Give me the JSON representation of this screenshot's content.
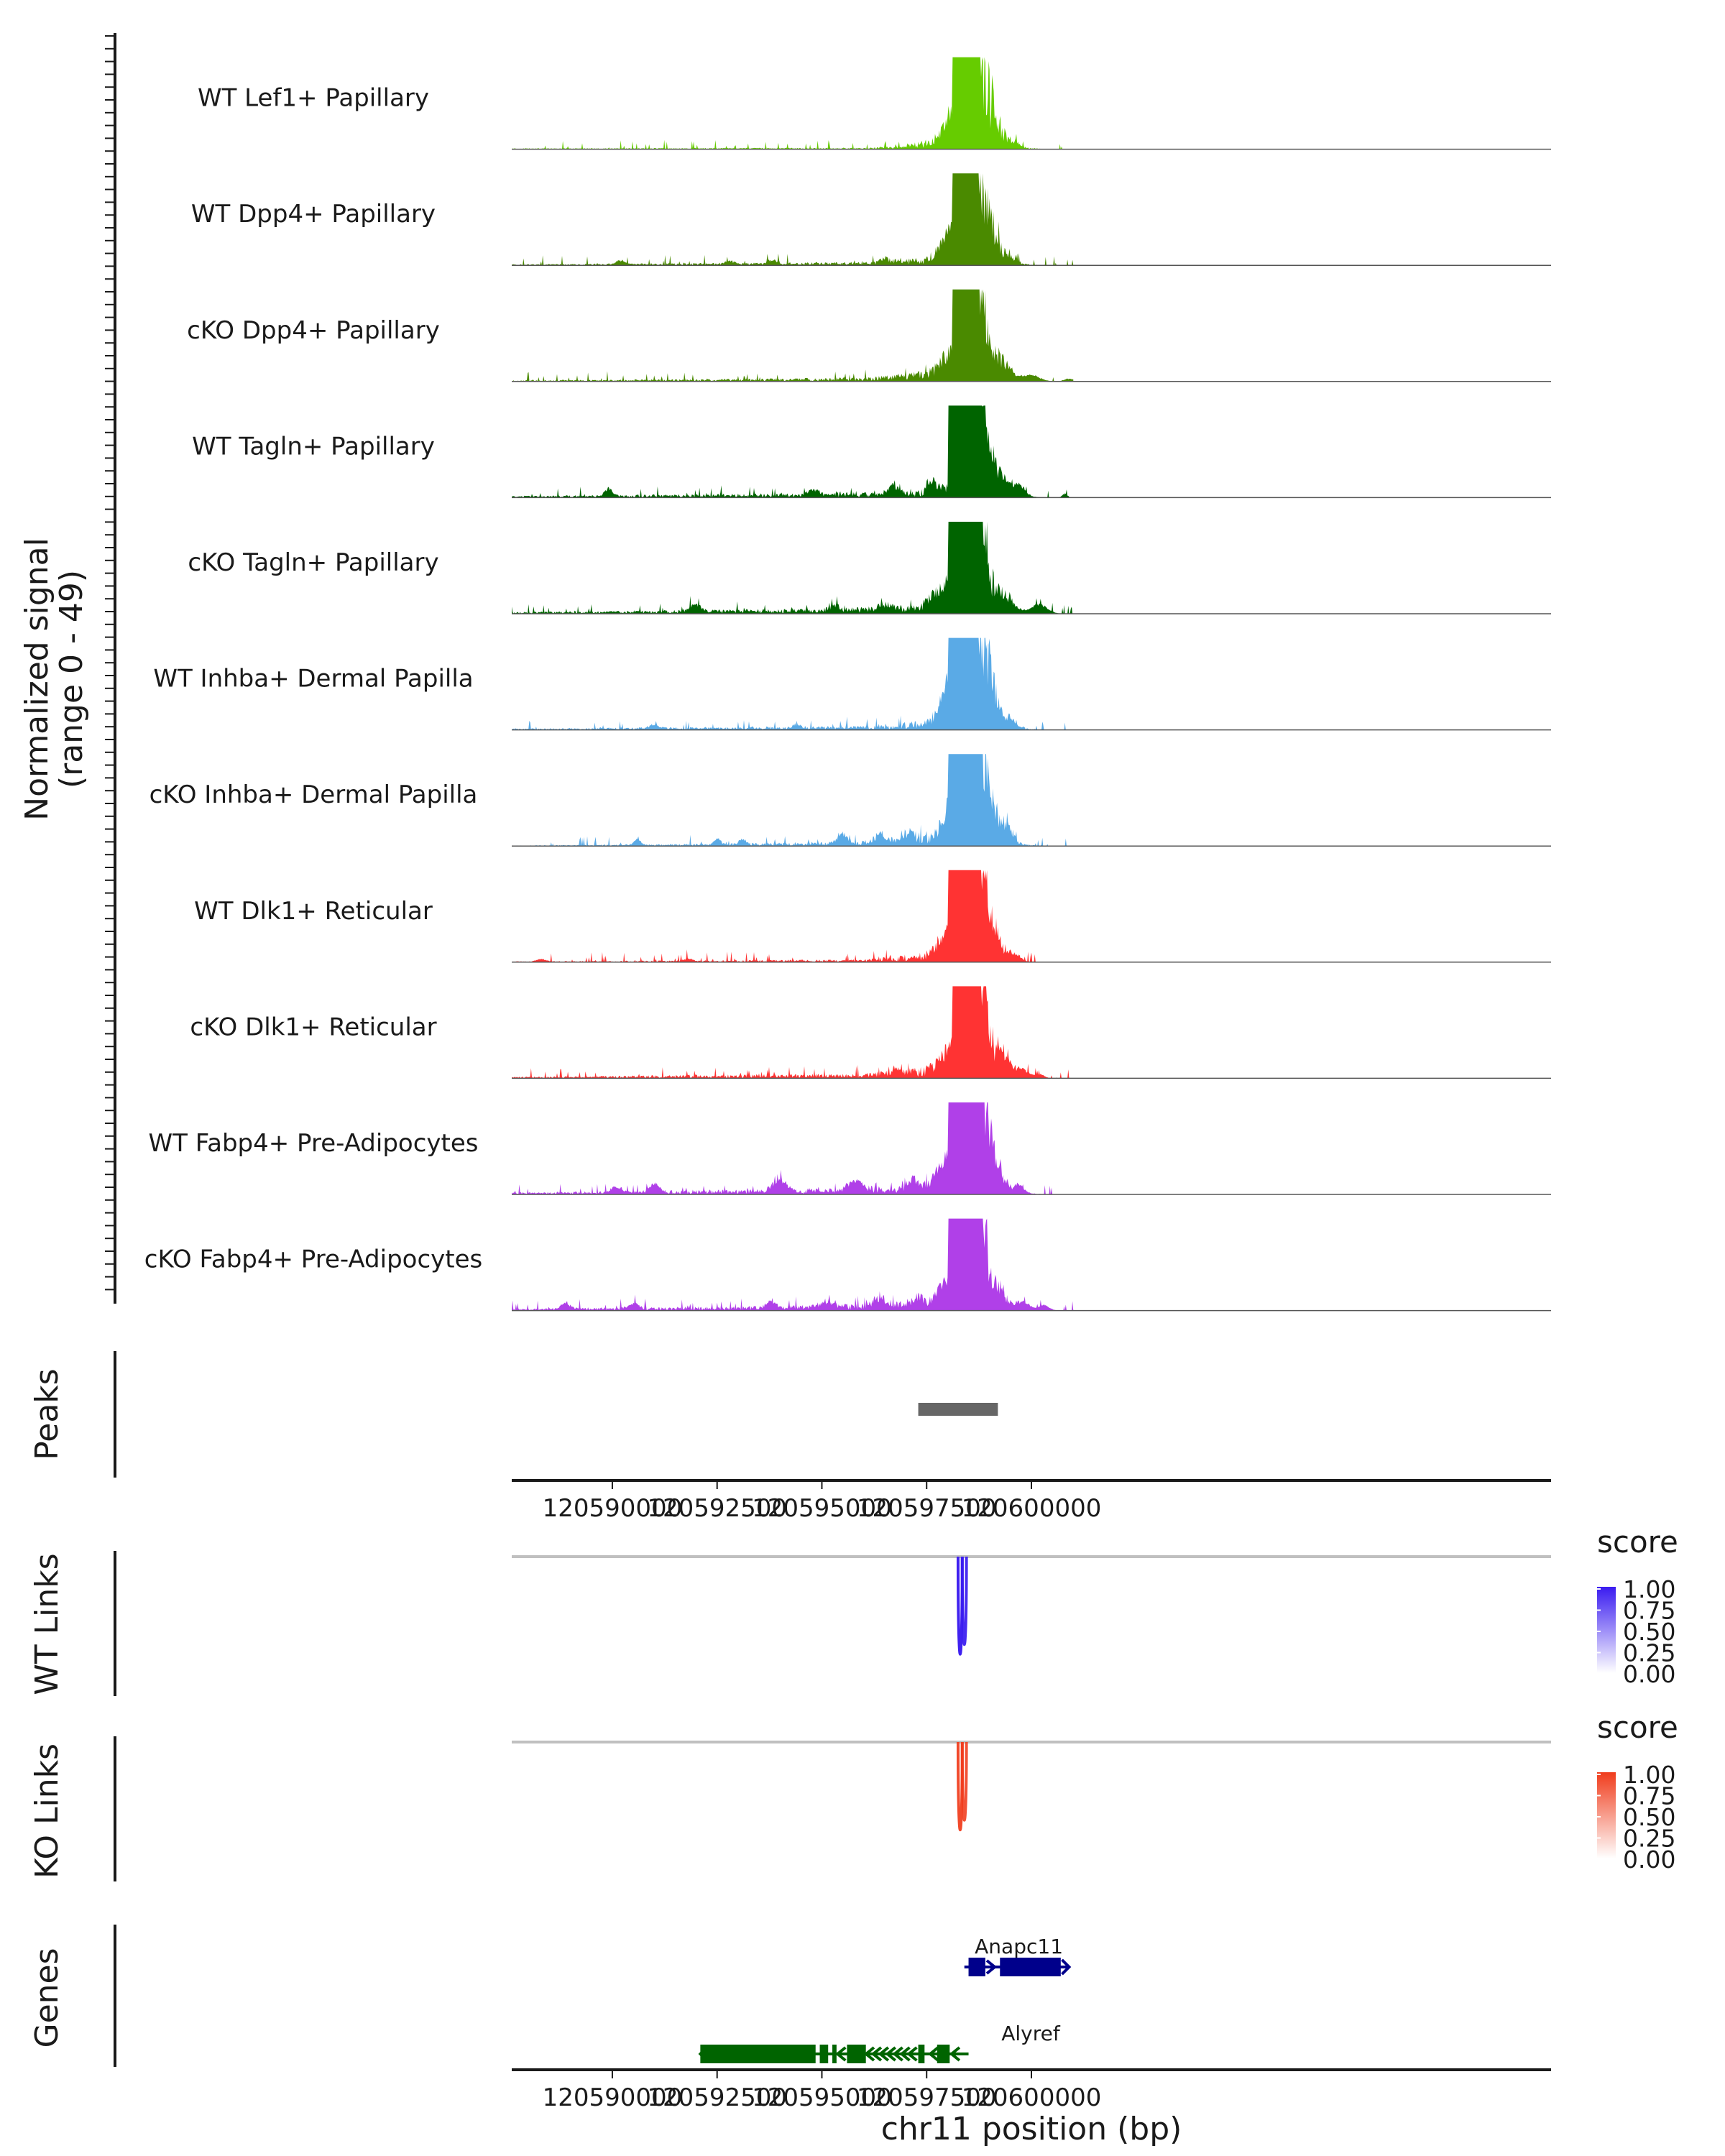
{
  "chart_data": {
    "type": "genome-coverage",
    "chromosome": "chr11",
    "xlabel": "chr11 position (bp)",
    "xlim": [
      120587600,
      120612400
    ],
    "x_ticks": [
      120590000,
      120592500,
      120595000,
      120597500,
      120600000
    ],
    "x_tick_labels": [
      "120590000",
      "120592500",
      "120595000",
      "120597500",
      "120600000"
    ],
    "coverage": {
      "ylabel_line1": "Normalized signal",
      "ylabel_line2": "(range 0 - 49)",
      "ylim": [
        0,
        49
      ],
      "tracks": [
        {
          "label": "WT Lef1+ Papillary",
          "color": "#66cc00",
          "max": 49,
          "background": [
            [
              120587600,
              0.3
            ],
            [
              120594000,
              0.5
            ],
            [
              120596000,
              0.4
            ],
            [
              120597000,
              1.5
            ],
            [
              120597900,
              5.2
            ],
            [
              120598100,
              8.1
            ]
          ],
          "peaks": [
            [
              120598550,
              46,
              160
            ],
            [
              120598300,
              20,
              160
            ],
            [
              120598000,
              6,
              200
            ],
            [
              120599100,
              6,
              180
            ],
            [
              120599600,
              2,
              120
            ]
          ]
        },
        {
          "label": "WT Dpp4+ Papillary",
          "color": "#4a8a00",
          "max": 49,
          "background": [
            [
              120587600,
              0.4
            ],
            [
              120592000,
              0.8
            ],
            [
              120596000,
              1.2
            ],
            [
              120597500,
              3
            ],
            [
              120598100,
              6
            ]
          ],
          "peaks": [
            [
              120598550,
              49,
              150
            ],
            [
              120598250,
              18,
              200
            ],
            [
              120597950,
              6,
              160
            ],
            [
              120599050,
              8,
              160
            ],
            [
              120599500,
              3,
              120
            ],
            [
              120590200,
              2,
              120
            ],
            [
              120593800,
              2,
              100
            ],
            [
              120596500,
              2,
              100
            ],
            [
              120592800,
              1.5,
              100
            ]
          ]
        },
        {
          "label": "cKO Dpp4+ Papillary",
          "color": "#4a8a00",
          "max": 49,
          "background": [
            [
              120587600,
              0.4
            ],
            [
              120592000,
              0.8
            ],
            [
              120596000,
              1.4
            ],
            [
              120597300,
              3.5
            ],
            [
              120598100,
              5.5
            ]
          ],
          "peaks": [
            [
              120598700,
              30,
              140
            ],
            [
              120598400,
              24,
              180
            ],
            [
              120598000,
              8,
              200
            ],
            [
              120599300,
              7,
              220
            ],
            [
              120600000,
              3,
              200
            ],
            [
              120600900,
              1.5,
              120
            ]
          ]
        },
        {
          "label": "WT Tagln+ Papillary",
          "color": "#006400",
          "max": 49,
          "background": [
            [
              120587600,
              0.6
            ],
            [
              120592000,
              1.2
            ],
            [
              120595000,
              1.6
            ],
            [
              120597300,
              2.5
            ],
            [
              120598000,
              4.5
            ]
          ],
          "peaks": [
            [
              120598600,
              47,
              110
            ],
            [
              120598300,
              32,
              140
            ],
            [
              120598850,
              30,
              120
            ],
            [
              120599200,
              10,
              200
            ],
            [
              120599700,
              6,
              150
            ],
            [
              120589900,
              4,
              90
            ],
            [
              120594800,
              3,
              120
            ],
            [
              120596700,
              4,
              120
            ],
            [
              120597650,
              6,
              100
            ],
            [
              120600800,
              2,
              60
            ]
          ]
        },
        {
          "label": "cKO Tagln+ Papillary",
          "color": "#006400",
          "max": 49,
          "background": [
            [
              120587600,
              0.6
            ],
            [
              120592000,
              1.4
            ],
            [
              120595000,
              1.8
            ],
            [
              120597200,
              3.2
            ],
            [
              120598000,
              5.8
            ]
          ],
          "peaks": [
            [
              120598550,
              28,
              160
            ],
            [
              120598800,
              24,
              120
            ],
            [
              120598200,
              16,
              160
            ],
            [
              120597800,
              8,
              200
            ],
            [
              120599400,
              6,
              200
            ],
            [
              120600200,
              5,
              180
            ],
            [
              120592000,
              4,
              140
            ],
            [
              120595300,
              3,
              120
            ],
            [
              120596500,
              3,
              120
            ]
          ]
        },
        {
          "label": "WT Inhba+ Dermal Papilla",
          "color": "#5aaae6",
          "max": 49,
          "background": [
            [
              120587600,
              0.5
            ],
            [
              120592000,
              1
            ],
            [
              120596000,
              1.4
            ],
            [
              120597500,
              3.5
            ],
            [
              120598000,
              7
            ]
          ],
          "peaks": [
            [
              120598550,
              46,
              160
            ],
            [
              120598250,
              22,
              170
            ],
            [
              120597950,
              10,
              180
            ],
            [
              120599000,
              12,
              180
            ],
            [
              120599500,
              4,
              130
            ],
            [
              120591000,
              2,
              120
            ],
            [
              120594400,
              2,
              100
            ]
          ]
        },
        {
          "label": "cKO Inhba+ Dermal Papilla",
          "color": "#5aaae6",
          "max": 49,
          "background": [
            [
              120587600,
              0.2
            ],
            [
              120592000,
              0.8
            ],
            [
              120595800,
              1.6
            ],
            [
              120597200,
              4
            ],
            [
              120598000,
              7
            ]
          ],
          "peaks": [
            [
              120598500,
              47,
              130
            ],
            [
              120598300,
              26,
              140
            ],
            [
              120598050,
              14,
              160
            ],
            [
              120598900,
              14,
              180
            ],
            [
              120599400,
              8,
              140
            ],
            [
              120590600,
              3,
              80
            ],
            [
              120592500,
              3,
              80
            ],
            [
              120593100,
              3,
              80
            ],
            [
              120595500,
              5,
              110
            ],
            [
              120596400,
              5,
              100
            ],
            [
              120597100,
              4,
              100
            ]
          ]
        },
        {
          "label": "WT Dlk1+ Reticular",
          "color": "#ff3333",
          "max": 49,
          "background": [
            [
              120587600,
              0.3
            ],
            [
              120592000,
              0.6
            ],
            [
              120596000,
              1
            ],
            [
              120597400,
              3.2
            ],
            [
              120598000,
              6
            ]
          ],
          "peaks": [
            [
              120598600,
              49,
              190
            ],
            [
              120598250,
              20,
              160
            ],
            [
              120597900,
              8,
              180
            ],
            [
              120599100,
              7,
              180
            ],
            [
              120599600,
              3,
              120
            ],
            [
              120588300,
              1.5,
              100
            ],
            [
              120591800,
              1.5,
              100
            ]
          ]
        },
        {
          "label": "cKO Dlk1+ Reticular",
          "color": "#ff3333",
          "max": 49,
          "background": [
            [
              120587600,
              0.5
            ],
            [
              120592000,
              1.2
            ],
            [
              120595800,
              1.6
            ],
            [
              120597400,
              3.8
            ],
            [
              120598100,
              6.5
            ]
          ],
          "peaks": [
            [
              120598700,
              30,
              160
            ],
            [
              120598400,
              22,
              180
            ],
            [
              120598000,
              9,
              200
            ],
            [
              120599300,
              8,
              200
            ],
            [
              120599800,
              4,
              140
            ],
            [
              120596800,
              3,
              120
            ],
            [
              120600200,
              2,
              100
            ]
          ]
        },
        {
          "label": "WT Fabp4+ Pre-Adipocytes",
          "color": "#b040e8",
          "max": 49,
          "background": [
            [
              120587600,
              0.7
            ],
            [
              120592000,
              1.6
            ],
            [
              120595000,
              2
            ],
            [
              120597400,
              3.5
            ],
            [
              120598000,
              6.5
            ]
          ],
          "peaks": [
            [
              120598750,
              45,
              120
            ],
            [
              120598450,
              40,
              130
            ],
            [
              120598200,
              24,
              140
            ],
            [
              120597900,
              10,
              180
            ],
            [
              120599100,
              10,
              180
            ],
            [
              120599700,
              4,
              120
            ],
            [
              120590100,
              3,
              140
            ],
            [
              120591000,
              4,
              120
            ],
            [
              120594000,
              6,
              160
            ],
            [
              120595800,
              5,
              180
            ],
            [
              120597200,
              6,
              140
            ]
          ]
        },
        {
          "label": "cKO Fabp4+ Pre-Adipocytes",
          "color": "#b040e8",
          "max": 49,
          "background": [
            [
              120587600,
              0.6
            ],
            [
              120592000,
              1.4
            ],
            [
              120595000,
              2
            ],
            [
              120597400,
              3.2
            ],
            [
              120598000,
              6
            ]
          ],
          "peaks": [
            [
              120598750,
              44,
              110
            ],
            [
              120598450,
              36,
              130
            ],
            [
              120598200,
              22,
              140
            ],
            [
              120597900,
              8,
              160
            ],
            [
              120599200,
              7,
              180
            ],
            [
              120599800,
              4,
              160
            ],
            [
              120588900,
              3,
              120
            ],
            [
              120590500,
              3,
              120
            ],
            [
              120593800,
              3,
              120
            ],
            [
              120595100,
              3,
              140
            ],
            [
              120596400,
              4,
              160
            ],
            [
              120597300,
              5,
              120
            ],
            [
              120600300,
              3,
              120
            ]
          ]
        }
      ]
    },
    "peaks_track": {
      "label": "Peaks",
      "color": "#666666",
      "regions": [
        {
          "start": 120597300,
          "end": 120599200
        }
      ]
    },
    "links": [
      {
        "label": "WT Links",
        "color": "#3a1cf0",
        "legend_title": "score",
        "legend_ticks": [
          "1.00",
          "0.75",
          "0.50",
          "0.25",
          "0.00"
        ],
        "arcs": [
          {
            "start": 120598250,
            "end": 120598350,
            "score": 0.95
          },
          {
            "start": 120598350,
            "end": 120598450,
            "score": 0.85
          }
        ]
      },
      {
        "label": "KO Links",
        "color": "#f03c1c",
        "legend_title": "score",
        "legend_ticks": [
          "1.00",
          "0.75",
          "0.50",
          "0.25",
          "0.00"
        ],
        "arcs": [
          {
            "start": 120598250,
            "end": 120598350,
            "score": 0.85
          },
          {
            "start": 120598350,
            "end": 120598450,
            "score": 0.75
          }
        ]
      }
    ],
    "genes": {
      "label": "Genes",
      "items": [
        {
          "name": "Anapc11",
          "strand": "+",
          "color": "#00008b",
          "start": 120598400,
          "end": 120600900,
          "exons": [
            [
              120598500,
              120598900
            ],
            [
              120599250,
              120600700
            ]
          ]
        },
        {
          "name": "Alyref",
          "strand": "-",
          "color": "#006400",
          "start": 120592100,
          "end": 120598500,
          "exons": [
            [
              120592100,
              120594850
            ],
            [
              120594950,
              120595150
            ],
            [
              120595250,
              120595350
            ],
            [
              120595600,
              120596050
            ],
            [
              120597300,
              120597450
            ],
            [
              120597750,
              120598050
            ]
          ]
        }
      ]
    }
  }
}
